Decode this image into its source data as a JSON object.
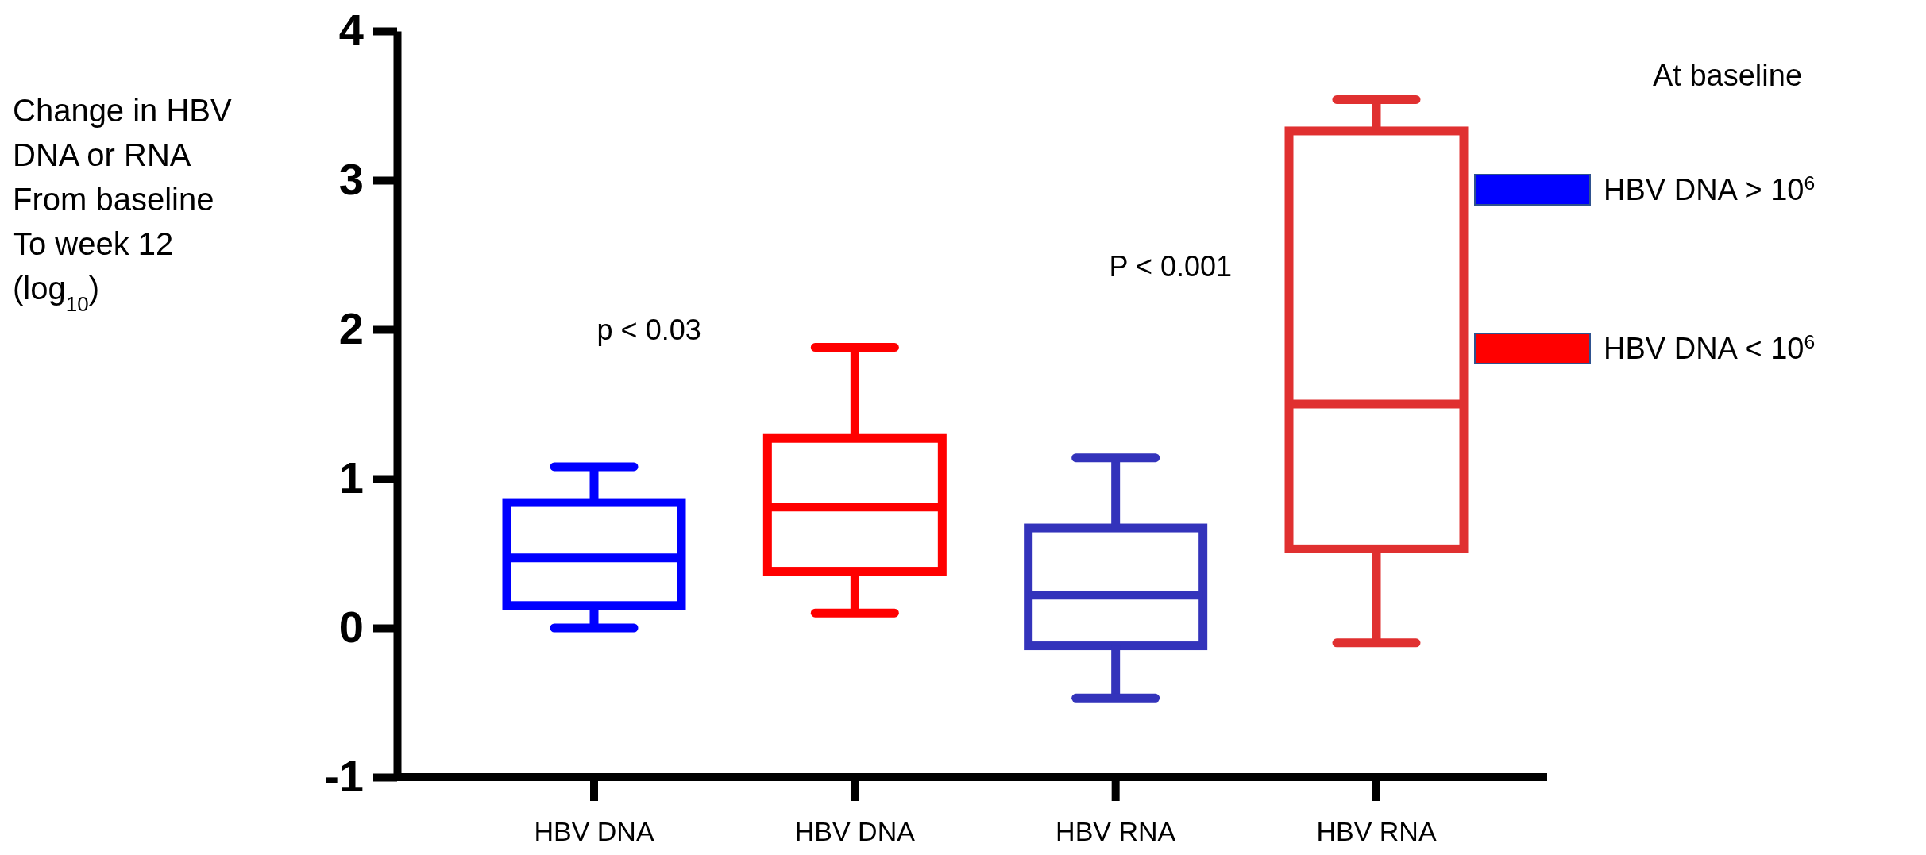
{
  "chart_data": {
    "type": "box",
    "categories": [
      "HBV DNA",
      "HBV DNA",
      "HBV RNA",
      "HBV RNA"
    ],
    "ylabel": "Change in HBV DNA or RNA From baseline To week 12 (log$_{10}$)",
    "ylim": [
      -1,
      4
    ],
    "yticks": [
      -1,
      0,
      1,
      2,
      3,
      4
    ],
    "grid": false,
    "legend": "top right",
    "legend_title": "At baseline",
    "series": [
      {
        "name": "HBV DNA > 10$^{6}$",
        "color": "#0000ff",
        "colors": [
          "#0000ff",
          null,
          "#3333bb",
          null
        ],
        "boxes": [
          {
            "low": 0,
            "q1": 0.15,
            "median": 0.47,
            "q3": 0.84,
            "high": 1.08
          },
          null,
          {
            "low": -0.47,
            "q1": -0.12,
            "median": 0.22,
            "q3": 0.67,
            "high": 1.14
          },
          null
        ]
      },
      {
        "name": "HBV DNA < 10$^{6}$",
        "color": "#ff0000",
        "colors": [
          null,
          "#ff0000",
          null,
          "#e03030"
        ],
        "boxes": [
          null,
          {
            "low": 0.1,
            "q1": 0.38,
            "median": 0.81,
            "q3": 1.27,
            "high": 1.88
          },
          null,
          {
            "low": -0.1,
            "q1": 0.53,
            "median": 1.5,
            "q3": 3.33,
            "high": 3.54
          }
        ]
      }
    ],
    "annotations": [
      "p < 0.03",
      "P < 0.001"
    ]
  }
}
